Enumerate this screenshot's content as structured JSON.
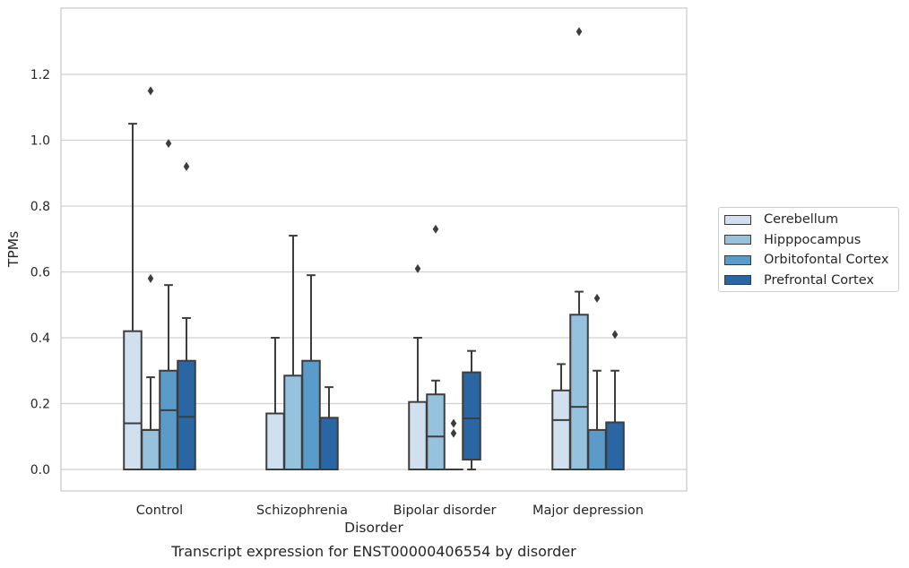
{
  "caption": "Transcript expression for ENST00000406554 by disorder",
  "chart_data": {
    "type": "box",
    "xlabel": "Disorder",
    "ylabel": "TPMs",
    "ylim": [
      -0.065,
      1.395
    ],
    "yticks": [
      "0.0",
      "0.2",
      "0.4",
      "0.6",
      "0.8",
      "1.0",
      "1.2"
    ],
    "grid": "horizontal",
    "legend_position": "right",
    "categories": [
      "Control",
      "Schizophrenia",
      "Bipolar disorder",
      "Major depression"
    ],
    "series": [
      {
        "name": "Cerebellum",
        "color": "#d0e0ef",
        "boxes": [
          {
            "q1": 0.0,
            "median": 0.14,
            "q3": 0.42,
            "whisker_low": 0.0,
            "whisker_high": 1.05,
            "fliers": []
          },
          {
            "q1": 0.0,
            "median": 0.0,
            "q3": 0.17,
            "whisker_low": 0.0,
            "whisker_high": 0.4,
            "fliers": []
          },
          {
            "q1": 0.0,
            "median": 0.0,
            "q3": 0.205,
            "whisker_low": 0.0,
            "whisker_high": 0.4,
            "fliers": [
              0.61
            ]
          },
          {
            "q1": 0.0,
            "median": 0.15,
            "q3": 0.24,
            "whisker_low": 0.0,
            "whisker_high": 0.32,
            "fliers": []
          }
        ]
      },
      {
        "name": "Hipppocampus",
        "color": "#97c2de",
        "boxes": [
          {
            "q1": 0.0,
            "median": 0.12,
            "q3": 0.12,
            "whisker_low": 0.0,
            "whisker_high": 0.28,
            "fliers": [
              0.58,
              1.15
            ]
          },
          {
            "q1": 0.0,
            "median": 0.0,
            "q3": 0.285,
            "whisker_low": 0.0,
            "whisker_high": 0.71,
            "fliers": []
          },
          {
            "q1": 0.0,
            "median": 0.1,
            "q3": 0.228,
            "whisker_low": 0.0,
            "whisker_high": 0.27,
            "fliers": [
              0.73
            ]
          },
          {
            "q1": 0.0,
            "median": 0.19,
            "q3": 0.47,
            "whisker_low": 0.0,
            "whisker_high": 0.54,
            "fliers": [
              1.33
            ]
          }
        ]
      },
      {
        "name": "Orbitofontal Cortex",
        "color": "#5a9bc9",
        "boxes": [
          {
            "q1": 0.0,
            "median": 0.18,
            "q3": 0.3,
            "whisker_low": 0.0,
            "whisker_high": 0.56,
            "fliers": [
              0.99
            ]
          },
          {
            "q1": 0.0,
            "median": 0.0,
            "q3": 0.33,
            "whisker_low": 0.0,
            "whisker_high": 0.59,
            "fliers": []
          },
          {
            "q1": 0.0,
            "median": 0.0,
            "q3": 0.0,
            "whisker_low": 0.0,
            "whisker_high": 0.0,
            "fliers": [
              0.11,
              0.14
            ]
          },
          {
            "q1": 0.0,
            "median": 0.0,
            "q3": 0.12,
            "whisker_low": 0.0,
            "whisker_high": 0.3,
            "fliers": [
              0.52
            ]
          }
        ]
      },
      {
        "name": "Prefrontal Cortex",
        "color": "#2a66a4",
        "boxes": [
          {
            "q1": 0.0,
            "median": 0.16,
            "q3": 0.33,
            "whisker_low": 0.0,
            "whisker_high": 0.46,
            "fliers": [
              0.92
            ]
          },
          {
            "q1": 0.0,
            "median": 0.0,
            "q3": 0.157,
            "whisker_low": 0.0,
            "whisker_high": 0.25,
            "fliers": []
          },
          {
            "q1": 0.03,
            "median": 0.155,
            "q3": 0.295,
            "whisker_low": 0.0,
            "whisker_high": 0.36,
            "fliers": []
          },
          {
            "q1": 0.0,
            "median": 0.0,
            "q3": 0.143,
            "whisker_low": 0.0,
            "whisker_high": 0.3,
            "fliers": [
              0.41
            ]
          }
        ]
      }
    ]
  }
}
